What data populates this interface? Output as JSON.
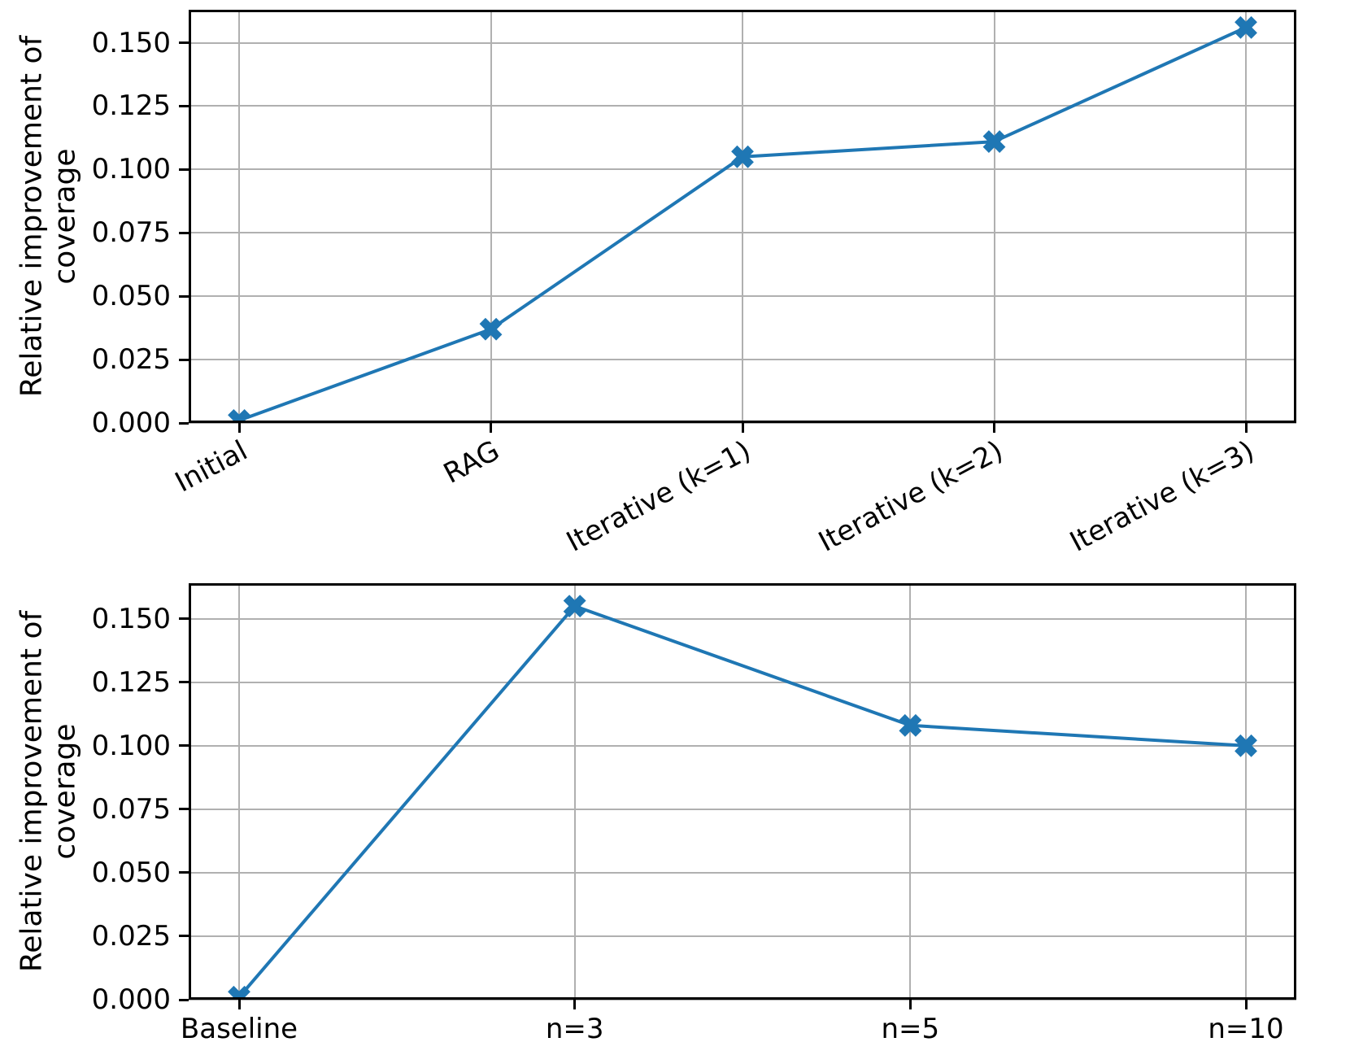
{
  "figure": {
    "background": "#ffffff",
    "line_color": "#1f77b4",
    "grid_color": "#b0b0b0",
    "spine_color": "#000000",
    "text_color": "#000000"
  },
  "chart_data": [
    {
      "type": "line",
      "title": "",
      "xlabel": "",
      "ylabel_lines": [
        "Relative improvement of",
        "coverage"
      ],
      "categories": [
        "Initial",
        "RAG",
        "Iterative (k=1)",
        "Iterative (k=2)",
        "Iterative (k=3)"
      ],
      "values": [
        0.001,
        0.037,
        0.105,
        0.111,
        0.156
      ],
      "yticks": [
        0.0,
        0.025,
        0.05,
        0.075,
        0.1,
        0.125,
        0.15
      ],
      "ytick_labels": [
        "0.000",
        "0.025",
        "0.050",
        "0.075",
        "0.100",
        "0.125",
        "0.150"
      ],
      "ylim": [
        0,
        0.163
      ],
      "grid": true,
      "legend": null,
      "marker": "X",
      "xtick_rotation_deg": 28
    },
    {
      "type": "line",
      "title": "",
      "xlabel": "",
      "ylabel_lines": [
        "Relative improvement of",
        "coverage"
      ],
      "categories": [
        "Baseline",
        "n=3",
        "n=5",
        "n=10"
      ],
      "values": [
        0.001,
        0.155,
        0.108,
        0.1
      ],
      "yticks": [
        0.0,
        0.025,
        0.05,
        0.075,
        0.1,
        0.125,
        0.15
      ],
      "ytick_labels": [
        "0.000",
        "0.025",
        "0.050",
        "0.075",
        "0.100",
        "0.125",
        "0.150"
      ],
      "ylim": [
        0,
        0.164
      ],
      "grid": true,
      "legend": null,
      "marker": "X",
      "xtick_rotation_deg": 0
    }
  ]
}
